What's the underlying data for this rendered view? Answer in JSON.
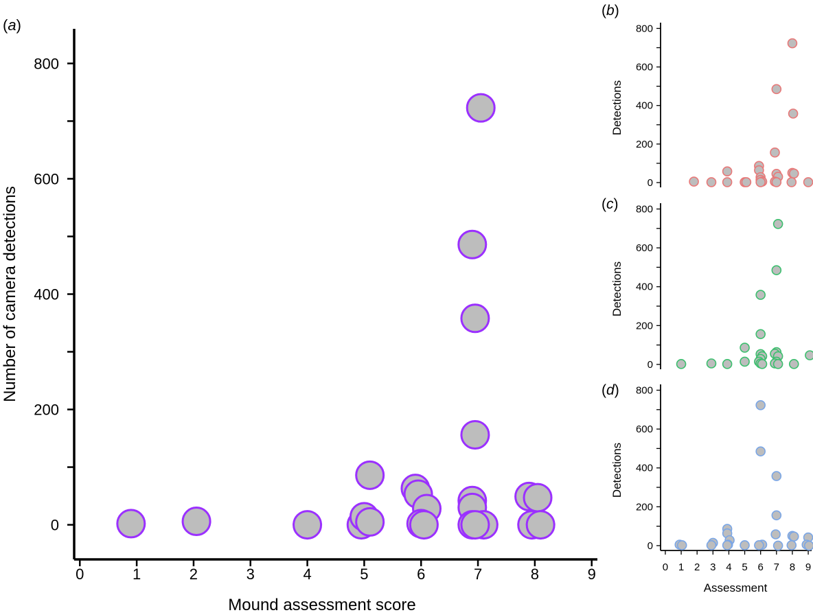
{
  "chart_data": [
    {
      "panel": "a",
      "type": "scatter",
      "xlabel": "Mound assessment score",
      "ylabel": "Number of camera detections",
      "xlim": [
        -0.1,
        9.1
      ],
      "ylim": [
        -60,
        860
      ],
      "xticks": [
        0,
        1,
        2,
        3,
        4,
        5,
        6,
        7,
        8,
        9
      ],
      "yticks": [
        0,
        200,
        400,
        600,
        800
      ],
      "minor_yticks": [
        100,
        300,
        500,
        700
      ],
      "marker_fill": "#bdbdbd",
      "marker_edge": "#9b30ff",
      "points": [
        [
          0.9,
          2
        ],
        [
          2.05,
          6
        ],
        [
          4.0,
          0
        ],
        [
          5.1,
          86
        ],
        [
          4.95,
          0
        ],
        [
          5.0,
          14
        ],
        [
          5.1,
          5
        ],
        [
          5.9,
          63
        ],
        [
          5.95,
          53
        ],
        [
          6.1,
          28
        ],
        [
          6.0,
          2
        ],
        [
          6.05,
          0
        ],
        [
          7.05,
          723
        ],
        [
          6.9,
          486
        ],
        [
          6.95,
          358
        ],
        [
          6.95,
          156
        ],
        [
          6.9,
          42
        ],
        [
          6.9,
          30
        ],
        [
          7.1,
          0
        ],
        [
          6.9,
          0
        ],
        [
          6.95,
          0
        ],
        [
          7.9,
          49
        ],
        [
          8.05,
          47
        ],
        [
          7.95,
          0
        ],
        [
          8.1,
          0
        ]
      ]
    },
    {
      "panel": "b",
      "type": "scatter",
      "xlabel": "",
      "ylabel": "Detections",
      "xlim": [
        -0.3,
        9.3
      ],
      "ylim": [
        -25,
        830
      ],
      "yticks": [
        0,
        200,
        400,
        600,
        800
      ],
      "minor_yticks": [
        100,
        300,
        500,
        700
      ],
      "marker_fill": "#bdbdbd",
      "marker_edge": "#e87878",
      "points": [
        [
          1.8,
          5
        ],
        [
          2.9,
          2
        ],
        [
          3.9,
          58
        ],
        [
          3.9,
          2
        ],
        [
          5.0,
          2
        ],
        [
          5.1,
          2
        ],
        [
          5.9,
          86
        ],
        [
          5.9,
          64
        ],
        [
          6.0,
          28
        ],
        [
          6.0,
          14
        ],
        [
          6.1,
          5
        ],
        [
          6.0,
          2
        ],
        [
          7.0,
          485
        ],
        [
          6.9,
          156
        ],
        [
          7.0,
          45
        ],
        [
          7.1,
          30
        ],
        [
          6.9,
          5
        ],
        [
          7.0,
          2
        ],
        [
          8.0,
          723
        ],
        [
          8.05,
          358
        ],
        [
          8.0,
          50
        ],
        [
          8.1,
          47
        ],
        [
          7.95,
          2
        ],
        [
          9.0,
          2
        ]
      ]
    },
    {
      "panel": "c",
      "type": "scatter",
      "xlabel": "",
      "ylabel": "Detections",
      "xlim": [
        -0.3,
        9.3
      ],
      "ylim": [
        -25,
        830
      ],
      "yticks": [
        0,
        200,
        400,
        600,
        800
      ],
      "minor_yticks": [
        100,
        300,
        500,
        700
      ],
      "marker_fill": "#bdbdbd",
      "marker_edge": "#3cbf6e",
      "points": [
        [
          1.0,
          2
        ],
        [
          2.9,
          5
        ],
        [
          3.9,
          2
        ],
        [
          5.0,
          86
        ],
        [
          5.0,
          14
        ],
        [
          6.0,
          358
        ],
        [
          6.0,
          156
        ],
        [
          6.0,
          53
        ],
        [
          6.1,
          42
        ],
        [
          6.0,
          28
        ],
        [
          5.9,
          14
        ],
        [
          6.0,
          5
        ],
        [
          6.1,
          2
        ],
        [
          7.1,
          723
        ],
        [
          7.0,
          485
        ],
        [
          7.0,
          63
        ],
        [
          6.9,
          55
        ],
        [
          7.1,
          42
        ],
        [
          7.0,
          14
        ],
        [
          6.9,
          5
        ],
        [
          7.1,
          2
        ],
        [
          8.1,
          2
        ],
        [
          9.1,
          47
        ]
      ]
    },
    {
      "panel": "d",
      "type": "scatter",
      "xlabel": "Assessment",
      "ylabel": "Detections",
      "xlim": [
        -0.3,
        9.3
      ],
      "ylim": [
        -25,
        830
      ],
      "xticks": [
        0,
        1,
        2,
        3,
        4,
        5,
        6,
        7,
        8,
        9
      ],
      "yticks": [
        0,
        200,
        400,
        600,
        800
      ],
      "minor_yticks": [
        100,
        300,
        500,
        700
      ],
      "marker_fill": "#bdbdbd",
      "marker_edge": "#7aa6e6",
      "points": [
        [
          0.9,
          5
        ],
        [
          1.05,
          2
        ],
        [
          3.0,
          14
        ],
        [
          2.9,
          2
        ],
        [
          3.9,
          86
        ],
        [
          3.9,
          63
        ],
        [
          4.05,
          28
        ],
        [
          3.95,
          5
        ],
        [
          3.9,
          2
        ],
        [
          5.0,
          2
        ],
        [
          6.0,
          723
        ],
        [
          6.0,
          485
        ],
        [
          6.1,
          5
        ],
        [
          5.9,
          2
        ],
        [
          7.0,
          358
        ],
        [
          7.0,
          156
        ],
        [
          6.95,
          58
        ],
        [
          7.1,
          0
        ],
        [
          8.0,
          50
        ],
        [
          8.1,
          47
        ],
        [
          7.95,
          2
        ],
        [
          9.0,
          42
        ],
        [
          8.9,
          5
        ],
        [
          9.05,
          0
        ]
      ]
    }
  ]
}
